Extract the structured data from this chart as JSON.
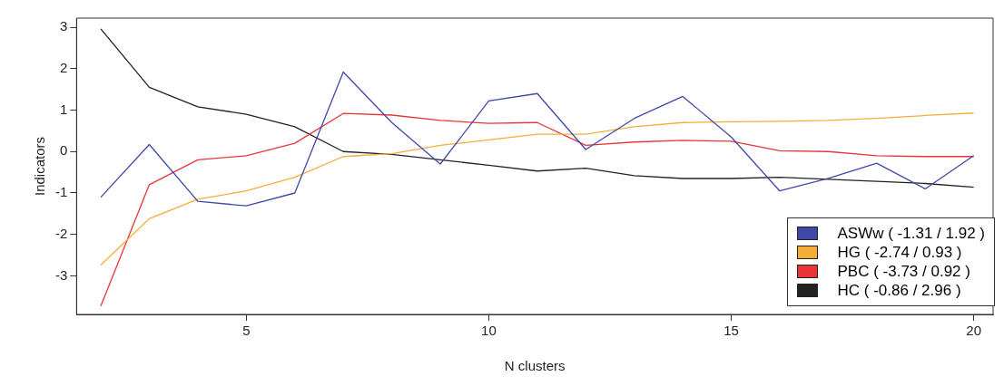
{
  "chart_data": {
    "type": "line",
    "xlabel": "N clusters",
    "ylabel": "Indicators",
    "x": [
      2,
      3,
      4,
      5,
      6,
      7,
      8,
      9,
      10,
      11,
      12,
      13,
      14,
      15,
      16,
      17,
      18,
      19,
      20
    ],
    "series": [
      {
        "name": "ASWw ( -1.31 / 1.92 )",
        "color": "#3f48a8",
        "values": [
          -1.1,
          0.17,
          -1.2,
          -1.31,
          -1.0,
          1.92,
          0.7,
          -0.3,
          1.22,
          1.4,
          0.05,
          0.8,
          1.33,
          0.35,
          -0.95,
          -0.65,
          -0.28,
          -0.9,
          -0.1
        ]
      },
      {
        "name": "HG ( -2.74 / 0.93 )",
        "color": "#f5ad3a",
        "values": [
          -2.74,
          -1.62,
          -1.15,
          -0.95,
          -0.62,
          -0.12,
          -0.05,
          0.15,
          0.28,
          0.42,
          0.42,
          0.6,
          0.7,
          0.72,
          0.73,
          0.75,
          0.8,
          0.87,
          0.93
        ]
      },
      {
        "name": "PBC ( -3.73 / 0.92 )",
        "color": "#e8353a",
        "values": [
          -3.73,
          -0.8,
          -0.2,
          -0.1,
          0.2,
          0.92,
          0.88,
          0.75,
          0.68,
          0.7,
          0.15,
          0.23,
          0.27,
          0.25,
          0.02,
          0.0,
          -0.1,
          -0.12,
          -0.12
        ]
      },
      {
        "name": "HC ( -0.86 / 2.96 )",
        "color": "#222222",
        "values": [
          2.96,
          1.55,
          1.08,
          0.9,
          0.6,
          0.0,
          -0.07,
          -0.2,
          -0.33,
          -0.47,
          -0.4,
          -0.58,
          -0.65,
          -0.65,
          -0.62,
          -0.67,
          -0.72,
          -0.77,
          -0.86
        ]
      }
    ],
    "xlim": [
      1.5,
      20.4
    ],
    "xticks": [
      5,
      10,
      15,
      20
    ],
    "ylim": [
      -3.93,
      3.22
    ],
    "yticks": [
      -3,
      -2,
      -1,
      0,
      1,
      2,
      3
    ],
    "grid": false,
    "legend": "bottom right",
    "marker": "none",
    "line_style": "solid"
  }
}
